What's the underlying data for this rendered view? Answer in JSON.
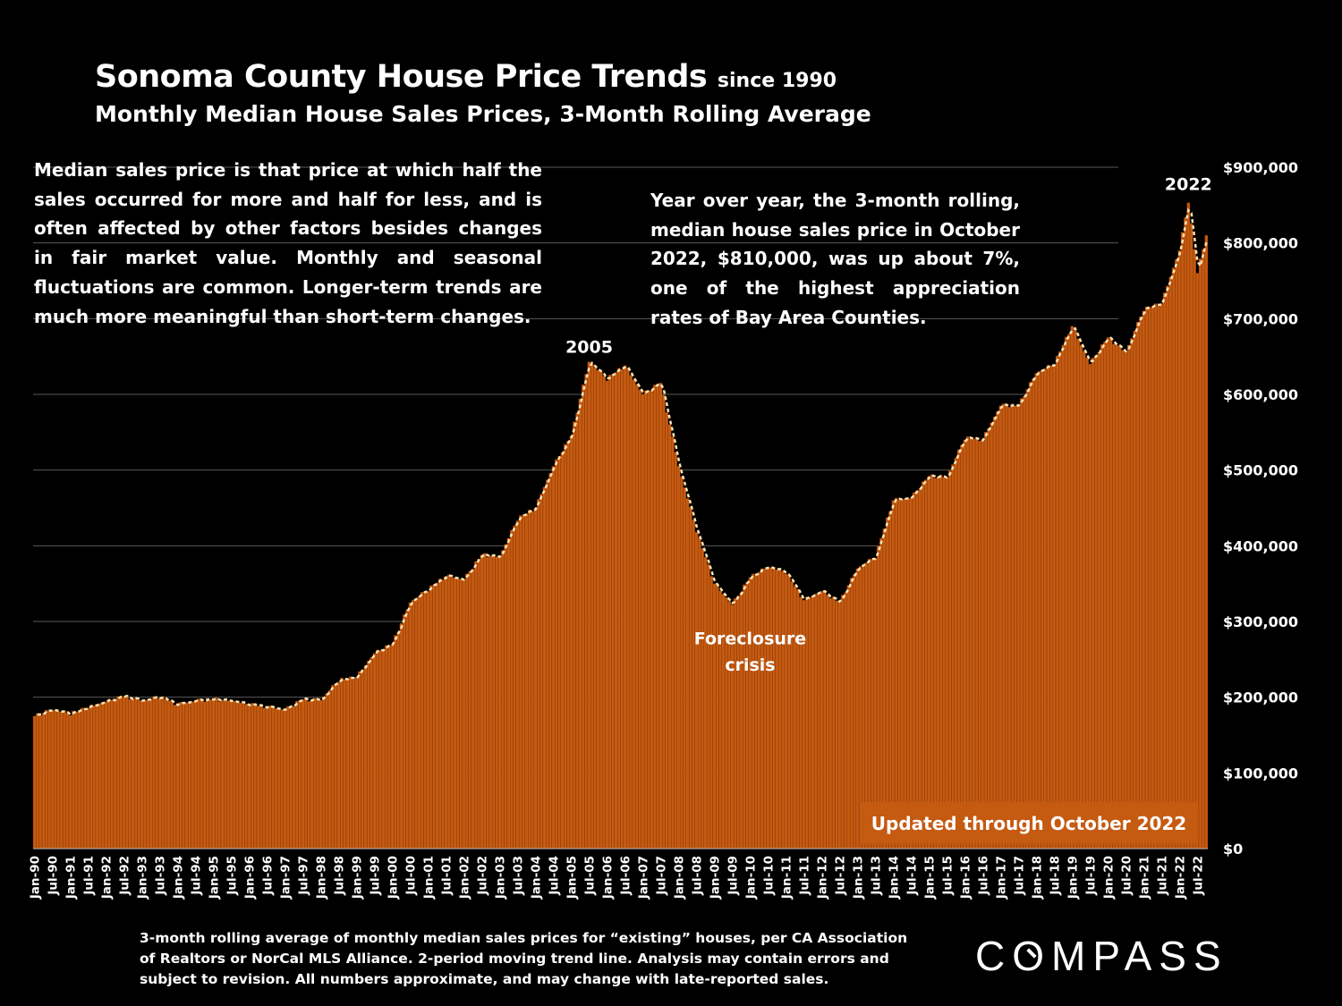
{
  "header": {
    "title_main": "Sonoma County House Price Trends",
    "title_since": "since 1990",
    "subtitle": "Monthly Median House Sales Prices, 3-Month Rolling Average"
  },
  "notes": {
    "left": "Median sales price is that price at which half the sales occurred for more and half for less, and is often affected by other factors besides changes in fair market value. Monthly and seasonal fluctuations are common. Longer-term trends are much more meaningful than short-term changes.",
    "right": "Year over year, the 3-month rolling, median house sales price in October 2022, $810,000, was up about 7%, one of the highest appreciation rates of Bay Area Counties."
  },
  "footnote": "3-month rolling average of monthly median sales prices for “existing” houses, per CA Association of Realtors or NorCal MLS Alliance. 2-period moving trend line. Analysis may contain errors and subject to revision. All numbers approximate, and may change with late-reported sales.",
  "logo": {
    "text_before": "C",
    "text_o": "O",
    "text_after": "MPASS"
  },
  "colors": {
    "background": "#000000",
    "bar": "#c55a11",
    "bar_stripe": "#7a3305",
    "trend": "#fbe3b5",
    "grid": "#5a5a5a",
    "badge": "#c55a11"
  },
  "chart_data": {
    "type": "bar",
    "title": "Sonoma County House Price Trends since 1990",
    "subtitle": "Monthly Median House Sales Prices, 3-Month Rolling Average",
    "ylabel": "",
    "ylim": [
      0,
      900000
    ],
    "yticks": [
      0,
      100000,
      200000,
      300000,
      400000,
      500000,
      600000,
      700000,
      800000,
      900000
    ],
    "ytick_labels": [
      "$0",
      "$100,000",
      "$200,000",
      "$300,000",
      "$400,000",
      "$500,000",
      "$600,000",
      "$700,000",
      "$800,000",
      "$900,000"
    ],
    "x_tick_labels": [
      "Jan-90",
      "Jul-90",
      "Jan-91",
      "Jul-91",
      "Jan-92",
      "Jul-92",
      "Jan-93",
      "Jul-93",
      "Jan-94",
      "Jul-94",
      "Jan-95",
      "Jul-95",
      "Jan-96",
      "Jul-96",
      "Jan-97",
      "Jul-97",
      "Jan-98",
      "Jul-98",
      "Jan-99",
      "Jul-99",
      "Jan-00",
      "Jul-00",
      "Jan-01",
      "Jul-01",
      "Jan-02",
      "Jul-02",
      "Jan-03",
      "Jul-03",
      "Jan-04",
      "Jul-04",
      "Jan-05",
      "Jul-05",
      "Jan-06",
      "Jul-06",
      "Jan-07",
      "Jul-07",
      "Jan-08",
      "Jul-08",
      "Jan-09",
      "Jul-09",
      "Jan-10",
      "Jul-10",
      "Jan-11",
      "Jul-11",
      "Jan-12",
      "Jul-12",
      "Jan-13",
      "Jul-13",
      "Jan-14",
      "Jul-14",
      "Jan-15",
      "Jul-15",
      "Jan-16",
      "Jul-16",
      "Jan-17",
      "Jul-17",
      "Jan-18",
      "Jul-18",
      "Jan-19",
      "Jul-19",
      "Jan-20",
      "Jul-20",
      "Jan-21",
      "Jul-21",
      "Jan-22",
      "Jul-22"
    ],
    "start": "Jan-90",
    "end": "Oct-22",
    "series_name": "3-Month Rolling Median Price",
    "trend_name": "2-period moving trend line",
    "anchors": [
      [
        "Jan-90",
        175000
      ],
      [
        "Jul-90",
        183000
      ],
      [
        "Jan-91",
        178000
      ],
      [
        "Jul-91",
        186000
      ],
      [
        "Jan-92",
        194000
      ],
      [
        "Jul-92",
        201000
      ],
      [
        "Jan-93",
        195000
      ],
      [
        "Jul-93",
        200000
      ],
      [
        "Jan-94",
        190000
      ],
      [
        "Jul-94",
        195000
      ],
      [
        "Jan-95",
        197000
      ],
      [
        "Jul-95",
        195000
      ],
      [
        "Jan-96",
        190000
      ],
      [
        "Jul-96",
        187000
      ],
      [
        "Jan-97",
        183000
      ],
      [
        "Jul-97",
        197000
      ],
      [
        "Jan-98",
        196000
      ],
      [
        "Jul-98",
        222000
      ],
      [
        "Jan-99",
        226000
      ],
      [
        "Jul-99",
        258000
      ],
      [
        "Jan-00",
        270000
      ],
      [
        "Jul-00",
        325000
      ],
      [
        "Jan-01",
        342000
      ],
      [
        "Jul-01",
        360000
      ],
      [
        "Jan-02",
        355000
      ],
      [
        "Jul-02",
        388000
      ],
      [
        "Jan-03",
        385000
      ],
      [
        "Jul-03",
        435000
      ],
      [
        "Jan-04",
        450000
      ],
      [
        "Jul-04",
        505000
      ],
      [
        "Jan-05",
        545000
      ],
      [
        "Jul-05",
        643000
      ],
      [
        "Jan-06",
        620000
      ],
      [
        "Jul-06",
        638000
      ],
      [
        "Jan-07",
        600000
      ],
      [
        "Jul-07",
        615000
      ],
      [
        "Jan-08",
        505000
      ],
      [
        "Jul-08",
        420000
      ],
      [
        "Jan-09",
        350000
      ],
      [
        "Jul-09",
        322000
      ],
      [
        "Jan-10",
        358000
      ],
      [
        "Jul-10",
        372000
      ],
      [
        "Jan-11",
        365000
      ],
      [
        "Jul-11",
        328000
      ],
      [
        "Jan-12",
        340000
      ],
      [
        "Jul-12",
        325000
      ],
      [
        "Jan-13",
        370000
      ],
      [
        "Jul-13",
        385000
      ],
      [
        "Jan-14",
        460000
      ],
      [
        "Jul-14",
        463000
      ],
      [
        "Jan-15",
        492000
      ],
      [
        "Jul-15",
        490000
      ],
      [
        "Jan-16",
        542000
      ],
      [
        "Jul-16",
        540000
      ],
      [
        "Jan-17",
        585000
      ],
      [
        "Jul-17",
        585000
      ],
      [
        "Jan-18",
        628000
      ],
      [
        "Jul-18",
        640000
      ],
      [
        "Jan-19",
        690000
      ],
      [
        "Jul-19",
        640000
      ],
      [
        "Jan-20",
        675000
      ],
      [
        "Jul-20",
        655000
      ],
      [
        "Jan-21",
        712000
      ],
      [
        "Jul-21",
        720000
      ],
      [
        "Jan-22",
        790000
      ],
      [
        "Jul-22",
        760000
      ],
      [
        "Apr-22",
        855000
      ],
      [
        "Oct-22",
        810000
      ]
    ],
    "annotations": [
      {
        "text": "2005",
        "x": "Jul-05",
        "y": 655000
      },
      {
        "text": "Foreclosure",
        "x": "Jan-10",
        "y": 270000
      },
      {
        "text": "crisis",
        "x": "Jan-10",
        "y": 235000
      },
      {
        "text": "2022",
        "x": "Apr-22",
        "y": 870000
      }
    ],
    "badge": "Updated through October 2022",
    "grid": true
  }
}
